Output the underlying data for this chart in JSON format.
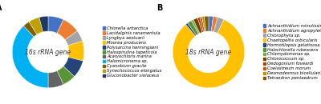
{
  "A": {
    "title": "16s rRNA gene",
    "labels": [
      "Chlorella antarctica",
      "Lacidalginis ranamentula",
      "Lyngbya aestuarii",
      "Moorea producens",
      "Polysarcina henningseni",
      "Halospirulina tapeticola",
      "Acaryochloris marina",
      "Halomicronema sp.",
      "Cyanobium gracile",
      "Synechococcus elongatus",
      "Gluconobacter violaceus"
    ],
    "values": [
      7,
      8,
      5,
      9,
      8,
      6,
      7,
      38,
      3,
      5,
      4
    ],
    "colors": [
      "#4472c4",
      "#ed7d31",
      "#a5a5a5",
      "#ffc000",
      "#264478",
      "#5a9436",
      "#636363",
      "#00b0f0",
      "#7f6000",
      "#c0a000",
      "#1f3864"
    ]
  },
  "B": {
    "title": "18s rRNA gene",
    "labels": [
      "Achnanthidium minutissimum",
      "Achnanthidium agropyletum",
      "Chlorophyta sp.",
      "Chaetopeltis orbicularis",
      "Hormotilopsis gelatinosa",
      "Halochlorella rubescens",
      "Chlamydomonas sp.",
      "Chlorococcum sp.",
      "Oedogonium foveardi",
      "Coelastreum morum",
      "Desmodesmus bicellularis",
      "Tetraedron pentaedrum"
    ],
    "values": [
      2,
      2,
      3,
      82,
      1,
      2,
      1,
      2,
      1,
      1,
      1,
      2
    ],
    "colors": [
      "#4472c4",
      "#ed7d31",
      "#a5a5a5",
      "#ffc000",
      "#264478",
      "#5a9436",
      "#70ad47",
      "#7b3f00",
      "#9e480e",
      "#c55a11",
      "#bf9000",
      "#7f6000"
    ]
  },
  "bg_color": "#ffffff",
  "label_fontsize": 3.8,
  "title_fontsize": 5.5,
  "wedge_linewidth": 0.3,
  "letter_fontsize": 7
}
